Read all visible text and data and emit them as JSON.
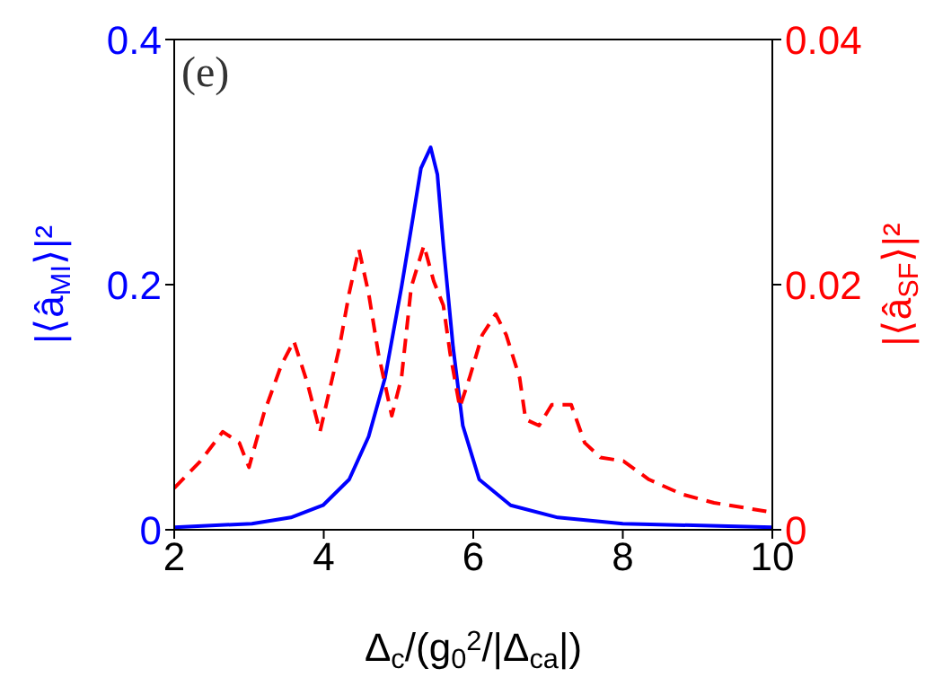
{
  "chart_data": {
    "type": "line",
    "xlabel": "Δ$_{c}$/(g$_{0}$$^{2}$/|Δ$_{ca}$|)",
    "ylabel": "|⟨â$_{MI}$⟩|²",
    "y2label": "|⟨â$_{SF}$⟩|²",
    "annotations": [
      "(e)"
    ],
    "xlim": [
      2,
      10
    ],
    "xticks": [
      2,
      4,
      6,
      8,
      10
    ],
    "ylim": [
      0,
      0.4
    ],
    "yticks": [
      0,
      0.2,
      0.4
    ],
    "y2lim": [
      0,
      0.04
    ],
    "y2ticks": [
      0,
      0.02,
      0.04
    ],
    "grid": false,
    "legend": false,
    "marker": "none",
    "series": [
      {
        "color": "#0000ff",
        "line_style": "solid",
        "x": [
          2,
          3.04,
          3.56,
          3.99,
          4.34,
          4.6,
          4.82,
          5.04,
          5.17,
          5.3,
          5.43,
          5.52,
          5.6,
          5.73,
          5.86,
          6.08,
          6.5,
          7.13,
          8,
          10
        ],
        "values": [
          0.002,
          0.005,
          0.01,
          0.02,
          0.041,
          0.076,
          0.124,
          0.198,
          0.246,
          0.295,
          0.312,
          0.29,
          0.232,
          0.149,
          0.085,
          0.041,
          0.02,
          0.01,
          0.005,
          0.002
        ]
      },
      {
        "color": "#ff0000",
        "line_style": "dashed",
        "axis": "y2",
        "x": [
          2,
          2.35,
          2.65,
          2.87,
          3,
          3.2,
          3.43,
          3.6,
          3.78,
          3.95,
          4.21,
          4.34,
          4.47,
          4.6,
          4.73,
          4.91,
          5.04,
          5.17,
          5.34,
          5.47,
          5.6,
          5.69,
          5.82,
          5.95,
          6.12,
          6.3,
          6.44,
          6.62,
          6.7,
          6.88,
          7.05,
          7.31,
          7.49,
          7.7,
          8.01,
          8.35,
          8.79,
          9.22,
          9.92
        ],
        "values": [
          0.0034,
          0.0056,
          0.008,
          0.0071,
          0.0051,
          0.0095,
          0.0134,
          0.0154,
          0.012,
          0.008,
          0.0149,
          0.0193,
          0.0229,
          0.0193,
          0.0144,
          0.0093,
          0.0124,
          0.0198,
          0.0232,
          0.0203,
          0.0183,
          0.0144,
          0.01,
          0.0124,
          0.0159,
          0.0176,
          0.0159,
          0.0124,
          0.009,
          0.0085,
          0.0102,
          0.0102,
          0.0071,
          0.0059,
          0.0056,
          0.0041,
          0.0029,
          0.0022,
          0.0015
        ]
      }
    ]
  }
}
